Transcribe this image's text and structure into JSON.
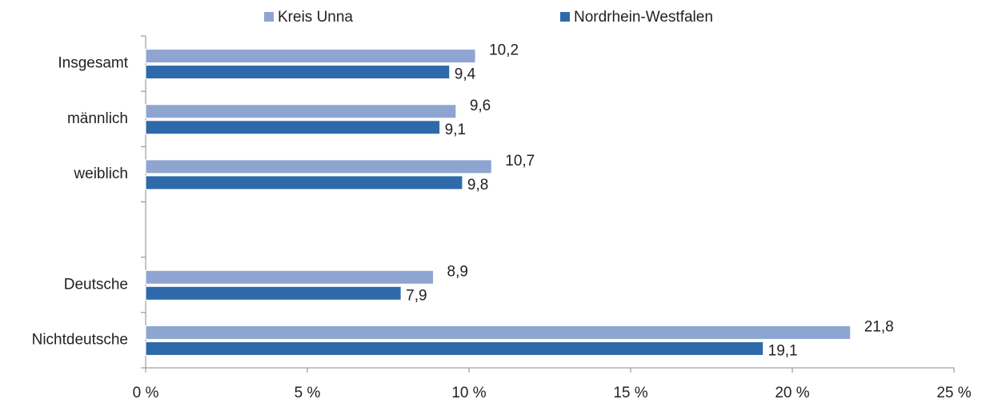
{
  "chart_data": {
    "type": "barh",
    "categories": [
      "Insgesamt",
      "männlich",
      "weiblich",
      null,
      "Deutsche",
      "Nichtdeutsche"
    ],
    "series": [
      {
        "name": "Kreis Unna",
        "color": "#8ea5d2",
        "values": [
          10.2,
          9.6,
          10.7,
          null,
          8.9,
          21.8
        ],
        "value_labels": [
          "10,2",
          "9,6",
          "10,7",
          null,
          "8,9",
          "21,8"
        ]
      },
      {
        "name": "Nordrhein-Westfalen",
        "color": "#2e6aaa",
        "values": [
          9.4,
          9.1,
          9.8,
          null,
          7.9,
          19.1
        ],
        "value_labels": [
          "9,4",
          "9,1",
          "9,8",
          null,
          "7,9",
          "19,1"
        ]
      }
    ],
    "xlim": [
      0,
      25
    ],
    "xticks": [
      {
        "value": 0,
        "label": "0 %"
      },
      {
        "value": 5,
        "label": "5 %"
      },
      {
        "value": 10,
        "label": "10 %"
      },
      {
        "value": 15,
        "label": "15 %"
      },
      {
        "value": 20,
        "label": "20 %"
      },
      {
        "value": 25,
        "label": "25 %"
      }
    ],
    "legend": "top"
  }
}
